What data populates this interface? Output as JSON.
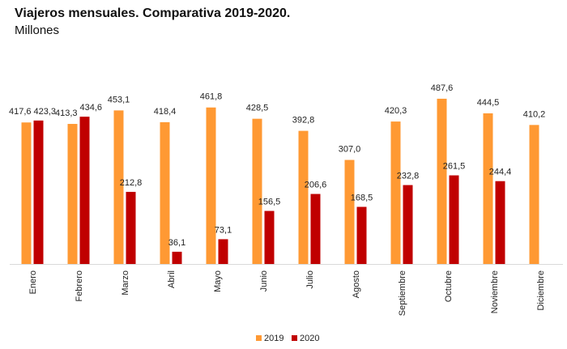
{
  "chart_data": {
    "type": "bar",
    "title": "Viajeros mensuales. Comparativa 2019-2020.",
    "subtitle": "Millones",
    "xlabel": "",
    "ylabel": "",
    "ylim": [
      0,
      540
    ],
    "grid": false,
    "legend_position": "bottom-center",
    "categories": [
      "Enero",
      "Febrero",
      "Marzo",
      "Abril",
      "Mayo",
      "Junio",
      "Julio",
      "Agosto",
      "Septiembre",
      "Octubre",
      "Noviembre",
      "Diciembre"
    ],
    "series": [
      {
        "name": "2019",
        "color": "#FF9933",
        "values": [
          417.6,
          413.3,
          453.1,
          418.4,
          461.8,
          428.5,
          392.8,
          307.0,
          420.3,
          487.6,
          444.5,
          410.2
        ],
        "labels": [
          "417,6",
          "413,3",
          "453,1",
          "418,4",
          "461,8",
          "428,5",
          "392,8",
          "307,0",
          "420,3",
          "487,6",
          "444,5",
          "410,2"
        ]
      },
      {
        "name": "2020",
        "color": "#C00000",
        "values": [
          423.3,
          434.6,
          212.8,
          36.1,
          73.1,
          156.5,
          206.6,
          168.5,
          232.8,
          261.5,
          244.4,
          null
        ],
        "labels": [
          "423,3",
          "434,6",
          "212,8",
          "36,1",
          "73,1",
          "156,5",
          "206,6",
          "168,5",
          "232,8",
          "261,5",
          "244,4",
          null
        ]
      }
    ]
  }
}
